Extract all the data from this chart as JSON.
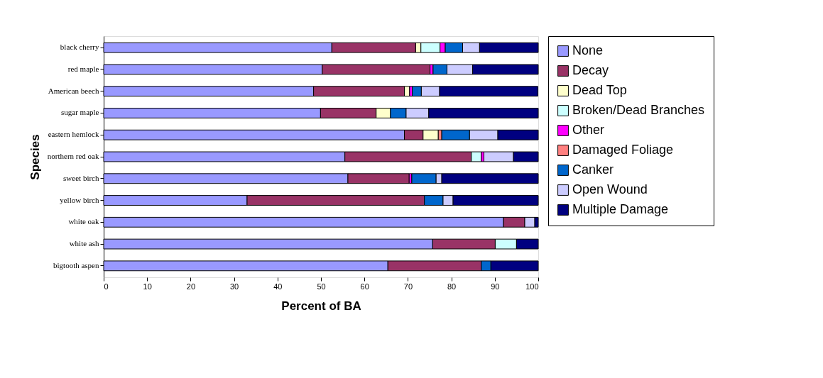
{
  "chart_data": {
    "type": "bar",
    "orientation": "horizontal",
    "stacked": true,
    "xlabel": "Percent of BA",
    "ylabel": "Species",
    "categories": [
      "black cherry",
      "red maple",
      "American beech",
      "sugar maple",
      "eastern hemlock",
      "northern red oak",
      "sweet birch",
      "yellow birch",
      "white oak",
      "white ash",
      "bigtooth aspen"
    ],
    "series": [
      {
        "name": "None",
        "color": "#9999ff",
        "values": [
          52.5,
          50.3,
          48.3,
          49.9,
          69.2,
          55.5,
          56.2,
          33.0,
          92.0,
          75.7,
          65.4
        ]
      },
      {
        "name": "Decay",
        "color": "#993366",
        "values": [
          19.3,
          24.8,
          20.9,
          12.8,
          4.3,
          29.1,
          14.1,
          40.8,
          4.9,
          14.4,
          21.5
        ]
      },
      {
        "name": "Dead Top",
        "color": "#ffffcc",
        "values": [
          1.2,
          null,
          1.2,
          3.3,
          3.5,
          null,
          null,
          null,
          null,
          null,
          null
        ]
      },
      {
        "name": "Broken/Dead Branches",
        "color": "#ccffff",
        "values": [
          4.4,
          null,
          null,
          null,
          null,
          2.3,
          null,
          null,
          null,
          4.9,
          null
        ]
      },
      {
        "name": "Other",
        "color": "#ff00ff",
        "values": [
          1.2,
          0.7,
          0.6,
          null,
          null,
          0.6,
          0.6,
          null,
          null,
          null,
          null
        ]
      },
      {
        "name": "Damaged Foliage",
        "color": "#ff8080",
        "values": [
          null,
          null,
          null,
          null,
          0.8,
          null,
          null,
          null,
          null,
          null,
          null
        ]
      },
      {
        "name": "Canker",
        "color": "#0066cc",
        "values": [
          4.0,
          3.2,
          2.1,
          3.6,
          6.4,
          null,
          5.6,
          4.3,
          null,
          null,
          2.2
        ]
      },
      {
        "name": "Open Wound",
        "color": "#ccccff",
        "values": [
          3.9,
          5.9,
          4.2,
          5.2,
          6.5,
          6.8,
          1.3,
          2.3,
          2.3,
          null,
          null
        ]
      },
      {
        "name": "Multiple Damage",
        "color": "#000080",
        "values": [
          13.5,
          15.1,
          22.6,
          25.2,
          9.3,
          5.7,
          22.2,
          19.6,
          0.8,
          5.0,
          10.9
        ]
      }
    ],
    "xlim": [
      0,
      100
    ],
    "xticks": [
      0,
      10,
      20,
      30,
      40,
      50,
      60,
      70,
      80,
      90,
      100
    ],
    "grid": false,
    "legend": "right"
  }
}
